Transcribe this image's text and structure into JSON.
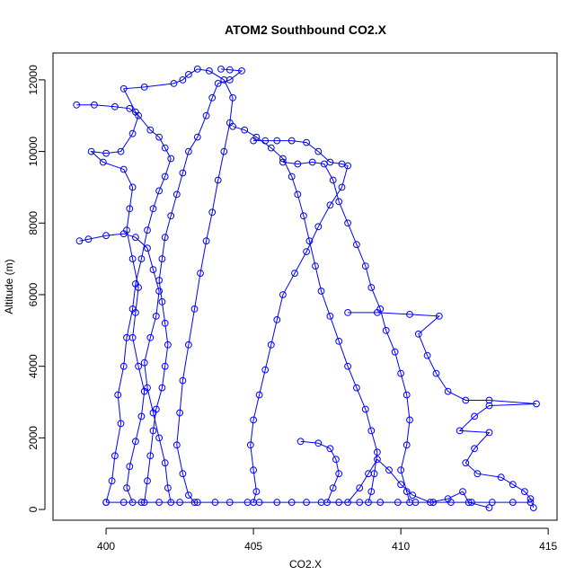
{
  "chart_data": {
    "type": "scatter",
    "title": "ATOM2 Southbound CO2.X",
    "xlabel": "CO2.X",
    "ylabel": "Altitude (m)",
    "xlim": [
      398.2,
      415.3
    ],
    "ylim": [
      -300,
      12750
    ],
    "x_ticks": [
      400,
      405,
      410,
      415
    ],
    "y_ticks": [
      0,
      2000,
      4000,
      6000,
      8000,
      10000,
      12000
    ],
    "series_color": "#0000FF",
    "marker": "open-circle",
    "connected": true,
    "grid": false,
    "series": [
      {
        "values": [
          [
            400.0,
            200
          ],
          [
            400.2,
            800
          ],
          [
            400.3,
            1500
          ],
          [
            400.5,
            2400
          ],
          [
            400.4,
            3200
          ],
          [
            400.6,
            4000
          ],
          [
            400.7,
            4800
          ],
          [
            400.9,
            5600
          ],
          [
            401.0,
            6300
          ],
          [
            401.2,
            7000
          ],
          [
            401.4,
            7800
          ],
          [
            401.6,
            8400
          ],
          [
            401.8,
            8900
          ],
          [
            402.0,
            9300
          ],
          [
            402.2,
            9800
          ],
          [
            402.0,
            10100
          ],
          [
            401.8,
            10400
          ],
          [
            401.5,
            10600
          ],
          [
            401.0,
            11100
          ],
          [
            400.6,
            11750
          ],
          [
            401.3,
            11800
          ],
          [
            402.3,
            11900
          ],
          [
            402.6,
            12000
          ],
          [
            402.8,
            12150
          ],
          [
            403.1,
            12300
          ],
          [
            403.5,
            12250
          ],
          [
            404.0,
            12000
          ],
          [
            404.3,
            11500
          ],
          [
            404.2,
            10800
          ],
          [
            404.0,
            10000
          ],
          [
            403.8,
            9200
          ],
          [
            403.6,
            8300
          ],
          [
            403.4,
            7500
          ],
          [
            403.2,
            6600
          ],
          [
            403.0,
            5600
          ],
          [
            402.8,
            4600
          ],
          [
            402.6,
            3600
          ],
          [
            402.5,
            2700
          ],
          [
            402.4,
            1800
          ],
          [
            402.6,
            1000
          ],
          [
            402.8,
            400
          ],
          [
            403.0,
            200
          ]
        ]
      },
      {
        "values": [
          [
            399.0,
            11300
          ],
          [
            399.6,
            11300
          ],
          [
            400.3,
            11250
          ],
          [
            400.8,
            11200
          ],
          [
            401.1,
            11000
          ],
          [
            400.9,
            10500
          ],
          [
            400.5,
            10000
          ],
          [
            400.0,
            9950
          ],
          [
            399.5,
            10000
          ],
          [
            399.9,
            9700
          ],
          [
            400.6,
            9500
          ],
          [
            400.9,
            9000
          ],
          [
            400.8,
            8400
          ],
          [
            400.7,
            7800
          ],
          [
            400.9,
            7000
          ],
          [
            401.1,
            6200
          ],
          [
            401.0,
            5500
          ],
          [
            400.9,
            4800
          ],
          [
            401.1,
            4000
          ],
          [
            401.3,
            3300
          ],
          [
            401.2,
            2600
          ],
          [
            401.0,
            1900
          ],
          [
            400.8,
            1200
          ],
          [
            400.7,
            600
          ],
          [
            400.9,
            200
          ]
        ]
      },
      {
        "values": [
          [
            399.1,
            7500
          ],
          [
            399.4,
            7550
          ],
          [
            400.0,
            7650
          ],
          [
            400.6,
            7700
          ],
          [
            401.0,
            7600
          ],
          [
            401.4,
            7300
          ],
          [
            401.6,
            6700
          ],
          [
            401.8,
            6100
          ],
          [
            401.7,
            5400
          ],
          [
            401.5,
            4800
          ],
          [
            401.3,
            4100
          ],
          [
            401.4,
            3400
          ],
          [
            401.6,
            2700
          ],
          [
            401.8,
            2000
          ],
          [
            402.0,
            1300
          ],
          [
            402.1,
            600
          ],
          [
            402.2,
            200
          ]
        ]
      },
      {
        "values": [
          [
            405.0,
            10300
          ],
          [
            405.4,
            10300
          ],
          [
            405.8,
            10300
          ],
          [
            406.3,
            10300
          ],
          [
            406.8,
            10250
          ],
          [
            407.2,
            10000
          ],
          [
            407.6,
            9700
          ],
          [
            408.0,
            9650
          ],
          [
            408.2,
            9600
          ],
          [
            408.0,
            9000
          ],
          [
            407.6,
            8500
          ],
          [
            407.2,
            7900
          ],
          [
            406.8,
            7200
          ],
          [
            406.4,
            6600
          ],
          [
            406.0,
            6000
          ],
          [
            405.8,
            5300
          ],
          [
            405.6,
            4600
          ],
          [
            405.4,
            3900
          ],
          [
            405.2,
            3200
          ],
          [
            405.0,
            2500
          ],
          [
            404.9,
            1800
          ],
          [
            405.0,
            1100
          ],
          [
            405.1,
            500
          ],
          [
            405.0,
            200
          ]
        ]
      },
      {
        "values": [
          [
            404.3,
            10700
          ],
          [
            404.7,
            10600
          ],
          [
            405.1,
            10400
          ],
          [
            405.6,
            10100
          ],
          [
            406.0,
            9800
          ],
          [
            406.3,
            9300
          ],
          [
            406.5,
            8800
          ],
          [
            406.7,
            8200
          ],
          [
            406.9,
            7500
          ],
          [
            407.1,
            6800
          ],
          [
            407.3,
            6100
          ],
          [
            407.6,
            5400
          ],
          [
            407.9,
            4700
          ],
          [
            408.2,
            4000
          ],
          [
            408.5,
            3400
          ],
          [
            408.8,
            2800
          ],
          [
            409.0,
            2200
          ],
          [
            409.2,
            1600
          ],
          [
            409.1,
            1000
          ],
          [
            409.0,
            500
          ],
          [
            408.9,
            200
          ]
        ]
      },
      {
        "values": [
          [
            406.0,
            9700
          ],
          [
            406.5,
            9650
          ],
          [
            407.0,
            9700
          ],
          [
            407.4,
            9650
          ],
          [
            407.7,
            9200
          ],
          [
            407.9,
            8600
          ],
          [
            408.2,
            8000
          ],
          [
            408.5,
            7400
          ],
          [
            408.8,
            6800
          ],
          [
            409.0,
            6200
          ],
          [
            409.3,
            5600
          ],
          [
            409.5,
            5000
          ],
          [
            409.8,
            4400
          ],
          [
            410.0,
            3800
          ],
          [
            410.2,
            3200
          ],
          [
            410.3,
            2500
          ],
          [
            410.2,
            1800
          ],
          [
            410.0,
            1100
          ],
          [
            410.2,
            500
          ],
          [
            410.3,
            200
          ]
        ]
      },
      {
        "values": [
          [
            403.9,
            12300
          ],
          [
            404.2,
            12280
          ],
          [
            404.6,
            12250
          ],
          [
            404.2,
            12000
          ],
          [
            403.8,
            11900
          ],
          [
            403.6,
            11500
          ],
          [
            403.4,
            11000
          ],
          [
            403.1,
            10400
          ],
          [
            402.8,
            10000
          ],
          [
            402.6,
            9400
          ],
          [
            402.4,
            8800
          ],
          [
            402.2,
            8200
          ],
          [
            402.0,
            7600
          ],
          [
            401.9,
            7000
          ],
          [
            401.8,
            6400
          ],
          [
            401.9,
            5800
          ],
          [
            402.0,
            5200
          ],
          [
            402.1,
            4600
          ],
          [
            402.0,
            4000
          ],
          [
            401.9,
            3400
          ],
          [
            401.7,
            2800
          ],
          [
            401.6,
            2200
          ],
          [
            401.5,
            1500
          ],
          [
            401.4,
            800
          ],
          [
            401.3,
            200
          ]
        ]
      },
      {
        "values": [
          [
            408.2,
            5500
          ],
          [
            409.2,
            5500
          ],
          [
            410.3,
            5450
          ],
          [
            411.3,
            5400
          ],
          [
            410.6,
            4900
          ],
          [
            410.9,
            4300
          ],
          [
            411.2,
            3800
          ],
          [
            411.6,
            3300
          ],
          [
            412.2,
            3050
          ],
          [
            413.0,
            3050
          ],
          [
            414.6,
            2950
          ],
          [
            413.0,
            2900
          ],
          [
            412.5,
            2600
          ],
          [
            412.0,
            2200
          ],
          [
            413.0,
            2150
          ],
          [
            412.5,
            1700
          ],
          [
            412.2,
            1300
          ],
          [
            412.6,
            1000
          ],
          [
            413.4,
            900
          ],
          [
            413.8,
            700
          ],
          [
            414.2,
            500
          ],
          [
            414.4,
            300
          ],
          [
            414.5,
            50
          ]
        ]
      },
      {
        "values": [
          [
            406.6,
            1900
          ],
          [
            407.2,
            1850
          ],
          [
            407.6,
            1700
          ],
          [
            407.8,
            1400
          ],
          [
            407.9,
            1000
          ],
          [
            407.7,
            600
          ],
          [
            407.5,
            200
          ],
          [
            408.2,
            200
          ],
          [
            408.6,
            600
          ],
          [
            408.9,
            1000
          ],
          [
            409.2,
            1400
          ],
          [
            409.6,
            1100
          ],
          [
            410.0,
            700
          ],
          [
            410.4,
            400
          ],
          [
            411.0,
            200
          ],
          [
            411.6,
            300
          ],
          [
            412.1,
            500
          ],
          [
            412.3,
            200
          ],
          [
            413.0,
            50
          ]
        ]
      }
    ],
    "bottom_run": [
      400.0,
      400.6,
      401.2,
      401.8,
      402.5,
      403.1,
      403.7,
      404.2,
      404.8,
      405.2,
      405.8,
      406.3,
      406.8,
      407.3,
      407.9,
      408.6,
      409.3,
      409.9,
      410.5,
      411.1,
      411.7,
      412.4,
      413.1,
      413.8,
      414.4
    ],
    "bottom_run_altitude": 200
  }
}
